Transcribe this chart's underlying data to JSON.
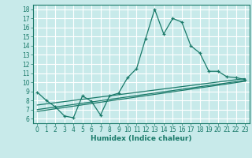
{
  "title": "",
  "xlabel": "Humidex (Indice chaleur)",
  "ylabel": "",
  "bg_color": "#c8eaea",
  "grid_color": "#ffffff",
  "line_color": "#1a7a6a",
  "xlim": [
    -0.5,
    23.5
  ],
  "ylim": [
    5.5,
    18.5
  ],
  "xticks": [
    0,
    1,
    2,
    3,
    4,
    5,
    6,
    7,
    8,
    9,
    10,
    11,
    12,
    13,
    14,
    15,
    16,
    17,
    18,
    19,
    20,
    21,
    22,
    23
  ],
  "yticks": [
    6,
    7,
    8,
    9,
    10,
    11,
    12,
    13,
    14,
    15,
    16,
    17,
    18
  ],
  "series0_x": [
    0,
    1,
    2,
    3,
    4,
    5,
    6,
    7,
    8,
    9,
    10,
    11,
    12,
    13,
    14,
    15,
    16,
    17,
    18,
    19,
    20,
    21,
    22,
    23
  ],
  "series0_y": [
    8.9,
    8.0,
    7.3,
    6.3,
    6.1,
    8.5,
    7.9,
    6.4,
    8.5,
    8.8,
    10.5,
    11.5,
    14.8,
    18.0,
    15.3,
    17.0,
    16.6,
    14.0,
    13.2,
    11.2,
    11.2,
    10.6,
    10.5,
    10.3
  ],
  "series1_x": [
    0,
    23
  ],
  "series1_y": [
    7.5,
    10.4
  ],
  "series2_x": [
    0,
    23
  ],
  "series2_y": [
    7.0,
    10.2
  ],
  "series3_x": [
    0,
    23
  ],
  "series3_y": [
    6.8,
    10.1
  ],
  "tick_fontsize": 5.5,
  "xlabel_fontsize": 6.5
}
